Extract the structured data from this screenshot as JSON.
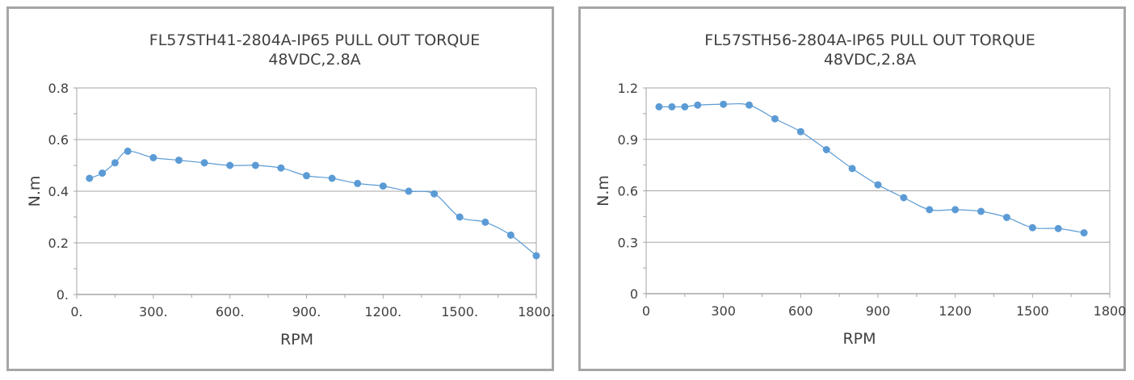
{
  "chart_data": [
    {
      "type": "line",
      "title": "FL57STH41-2804A-IP65   PULL OUT TORQUE",
      "subtitle": "48VDC,2.8A",
      "xlabel": "RPM",
      "ylabel": "N.m",
      "xlim": [
        0,
        1800
      ],
      "ylim": [
        0,
        0.8
      ],
      "xticks": [
        "0.",
        "300.",
        "600.",
        "900.",
        "1200.",
        "1500.",
        "1800."
      ],
      "yticks": [
        "0.",
        "0.2",
        "0.4",
        "0.6",
        "0.8"
      ],
      "grid": true,
      "color": "#5b9bd5",
      "x": [
        50,
        100,
        150,
        200,
        300,
        400,
        500,
        600,
        700,
        800,
        900,
        1000,
        1100,
        1200,
        1300,
        1400,
        1500,
        1600,
        1700,
        1800
      ],
      "y": [
        0.45,
        0.47,
        0.51,
        0.555,
        0.53,
        0.52,
        0.51,
        0.5,
        0.5,
        0.49,
        0.46,
        0.45,
        0.43,
        0.42,
        0.4,
        0.39,
        0.3,
        0.28,
        0.23,
        0.15
      ]
    },
    {
      "type": "line",
      "title": "FL57STH56-2804A-IP65  PULL OUT TORQUE",
      "subtitle": "48VDC,2.8A",
      "xlabel": "RPM",
      "ylabel": "N.m",
      "xlim": [
        0,
        1800
      ],
      "ylim": [
        0,
        1.2
      ],
      "xticks": [
        "0",
        "300",
        "600",
        "900",
        "1200",
        "1500",
        "1800"
      ],
      "yticks": [
        "0",
        "0.3",
        "0.6",
        "0.9",
        "1.2"
      ],
      "grid": true,
      "color": "#5b9bd5",
      "x": [
        50,
        100,
        150,
        200,
        300,
        400,
        500,
        600,
        700,
        800,
        900,
        1000,
        1100,
        1200,
        1300,
        1400,
        1500,
        1600,
        1700
      ],
      "y": [
        1.09,
        1.09,
        1.09,
        1.1,
        1.105,
        1.1,
        1.02,
        0.945,
        0.84,
        0.73,
        0.635,
        0.56,
        0.49,
        0.49,
        0.48,
        0.445,
        0.385,
        0.38,
        0.355
      ]
    }
  ]
}
